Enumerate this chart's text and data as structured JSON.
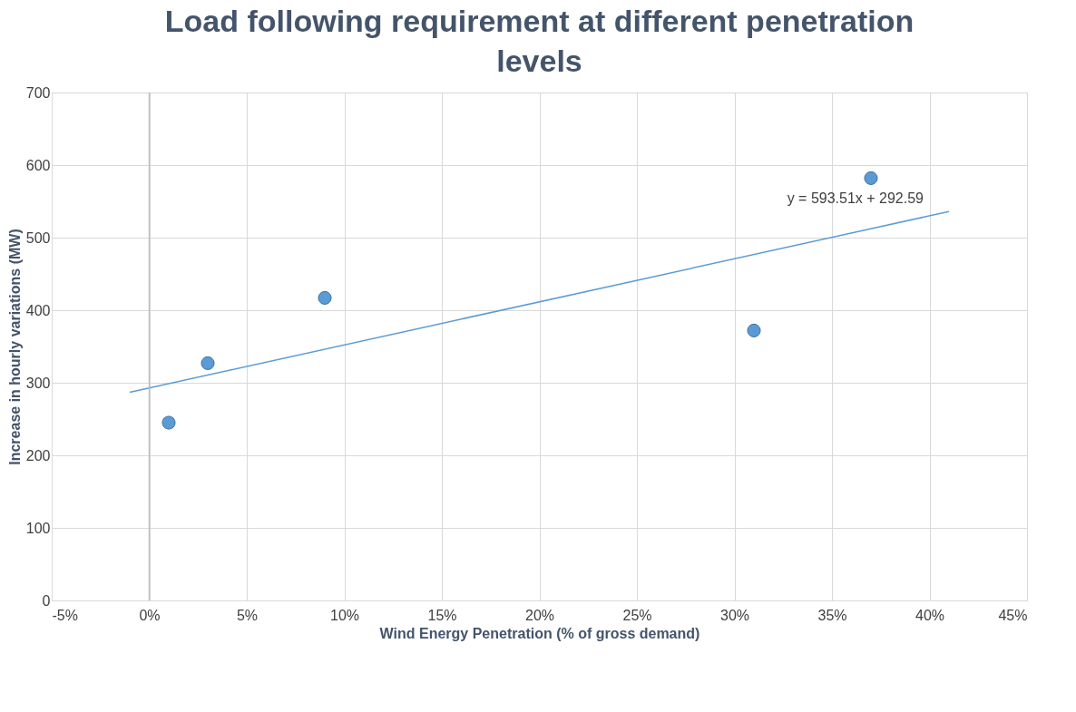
{
  "chart_data": {
    "type": "scatter",
    "title": "Load following requirement at different penetration levels",
    "xlabel": "Wind Energy Penetration (% of gross demand)",
    "ylabel": "Increase in hourly variations (MW)",
    "series": [
      {
        "color": "#5b9bd5",
        "x": [
          1,
          3,
          9,
          31,
          37
        ],
        "values": [
          245,
          327,
          417,
          372,
          582
        ],
        "marker": "circle"
      },
      {
        "type": "line",
        "color": "#5b9bd5",
        "x": [
          -1,
          41
        ],
        "values": [
          287,
          536
        ],
        "line_style": "solid",
        "marker": "none"
      }
    ],
    "annotations": [
      "y = 593.51x + 292.59"
    ],
    "ref_lines": [
      {
        "axis": "x",
        "value": 0,
        "color": "#bfbfbf"
      }
    ],
    "xlim": [
      -5,
      45
    ],
    "ylim": [
      0,
      700
    ],
    "xticks": [
      {
        "value": -5,
        "label": "-5%"
      },
      {
        "value": 0,
        "label": "0%"
      },
      {
        "value": 5,
        "label": "5%"
      },
      {
        "value": 10,
        "label": "10%"
      },
      {
        "value": 15,
        "label": "15%"
      },
      {
        "value": 20,
        "label": "20%"
      },
      {
        "value": 25,
        "label": "25%"
      },
      {
        "value": 30,
        "label": "30%"
      },
      {
        "value": 35,
        "label": "35%"
      },
      {
        "value": 40,
        "label": "40%"
      },
      {
        "value": 45,
        "label": "45%"
      }
    ],
    "yticks": [
      0,
      100,
      200,
      300,
      400,
      500,
      600,
      700
    ],
    "grid": true
  }
}
